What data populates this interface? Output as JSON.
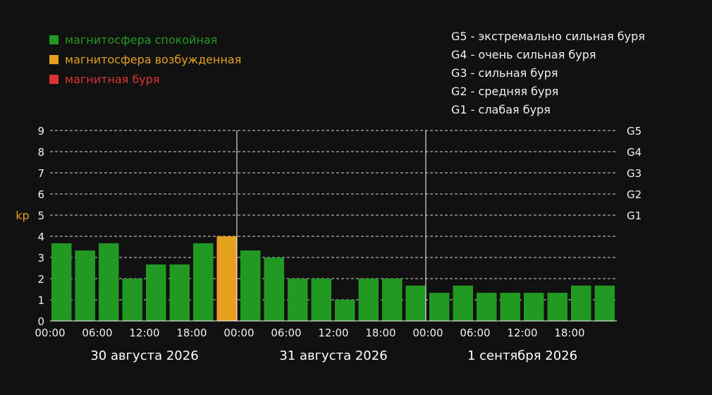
{
  "legend": {
    "items": [
      {
        "label": "магнитосфера спокойная",
        "color": "#229922"
      },
      {
        "label": "магнитосфера возбужденная",
        "color": "#e6a020"
      },
      {
        "label": "магнитная буря",
        "color": "#dd3333"
      }
    ]
  },
  "storm_scale": [
    {
      "label": "G5 - экстремально сильная буря"
    },
    {
      "label": "G4 - очень сильная буря"
    },
    {
      "label": "G3 - сильная буря"
    },
    {
      "label": "G2 - средняя буря"
    },
    {
      "label": "G1 - слабая буря"
    }
  ],
  "chart_data": {
    "type": "bar",
    "ylabel": "kp",
    "ylim": [
      0,
      9
    ],
    "yticks": [
      "0",
      "1",
      "2",
      "3",
      "4",
      "5",
      "6",
      "7",
      "8",
      "9"
    ],
    "right_ticks": [
      {
        "value": 5,
        "label": "G1"
      },
      {
        "value": 6,
        "label": "G2"
      },
      {
        "value": 7,
        "label": "G3"
      },
      {
        "value": 8,
        "label": "G4"
      },
      {
        "value": 9,
        "label": "G5"
      }
    ],
    "grid": "dashed-horizontal",
    "x_tick_labels": [
      "00:00",
      "06:00",
      "12:00",
      "18:00",
      "00:00",
      "06:00",
      "12:00",
      "18:00",
      "00:00",
      "06:00",
      "12:00",
      "18:00"
    ],
    "days": [
      "30 августа 2026",
      "31 августа 2026",
      "1 сентября 2026"
    ],
    "values": [
      3.67,
      3.33,
      3.67,
      2,
      2.67,
      2.67,
      3.67,
      4,
      3.33,
      3,
      2,
      2,
      1,
      2,
      2,
      1.67,
      1.33,
      1.67,
      1.33,
      1.33,
      1.33,
      1.33,
      1.67,
      1.67
    ],
    "status": [
      "quiet",
      "quiet",
      "quiet",
      "quiet",
      "quiet",
      "quiet",
      "quiet",
      "active",
      "quiet",
      "quiet",
      "quiet",
      "quiet",
      "quiet",
      "quiet",
      "quiet",
      "quiet",
      "quiet",
      "quiet",
      "quiet",
      "quiet",
      "quiet",
      "quiet",
      "quiet",
      "quiet"
    ],
    "colors": {
      "quiet": "#229922",
      "active": "#e6a020",
      "storm": "#dd3333",
      "ylabel": "#e6a020"
    }
  }
}
